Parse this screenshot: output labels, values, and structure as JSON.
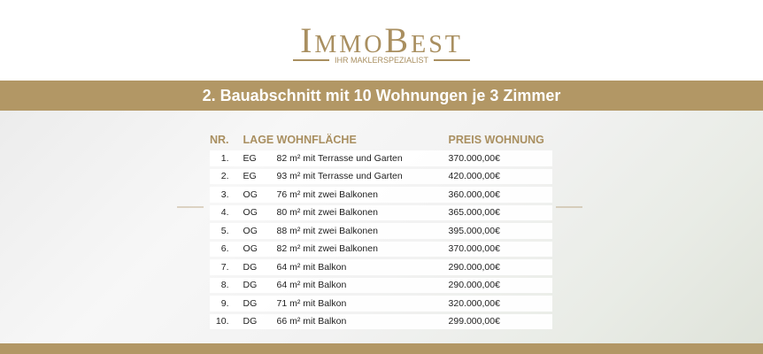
{
  "brand": {
    "name": "ImmoBest",
    "tagline": "IHR MAKLERSPEZIALIST",
    "color": "#a98f60"
  },
  "banner": {
    "title": "2. Bauabschnitt mit 10 Wohnungen je 3 Zimmer",
    "color": "#b29765"
  },
  "table": {
    "headers": [
      "NR.",
      "LAGE",
      "WOHNFLÄCHE",
      "PREIS WOHNUNG"
    ],
    "rows": [
      [
        "1.",
        "EG",
        "82 m² mit Terrasse und Garten",
        "370.000,00€"
      ],
      [
        "2.",
        "EG",
        "93 m² mit Terrasse und Garten",
        "420.000,00€"
      ],
      [
        "3.",
        "OG",
        "76 m² mit zwei Balkonen",
        "360.000,00€"
      ],
      [
        "4.",
        "OG",
        "80 m² mit zwei Balkonen",
        "365.000,00€"
      ],
      [
        "5.",
        "OG",
        "88 m² mit zwei Balkonen",
        "395.000,00€"
      ],
      [
        "6.",
        "OG",
        "82 m² mit zwei Balkonen",
        "370.000,00€"
      ],
      [
        "7.",
        "DG",
        "64 m² mit Balkon",
        "290.000,00€"
      ],
      [
        "8.",
        "DG",
        "64 m² mit Balkon",
        "290.000,00€"
      ],
      [
        "9.",
        "DG",
        "71 m² mit Balkon",
        "320.000,00€"
      ],
      [
        "10.",
        "DG",
        "66 m² mit Balkon",
        "299.000,00€"
      ]
    ]
  }
}
